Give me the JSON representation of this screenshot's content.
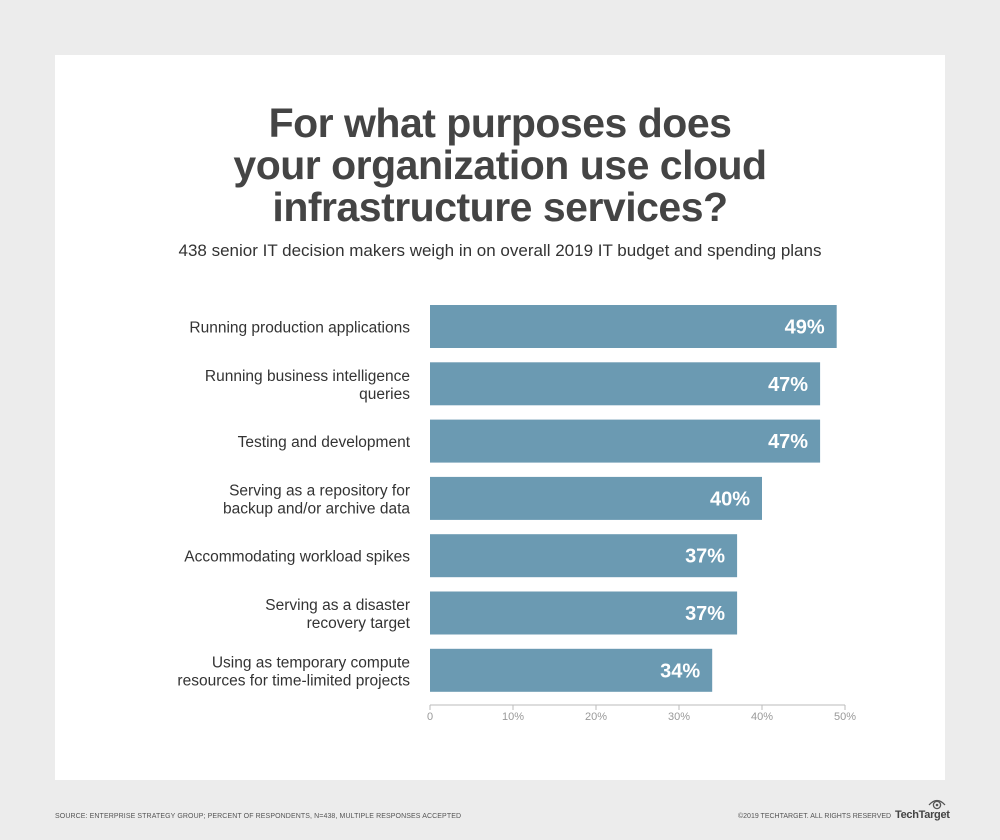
{
  "chart_data": {
    "type": "bar",
    "orientation": "horizontal",
    "title": "For what purposes does your organization use cloud infrastructure services?",
    "title_lines": [
      "For what purposes does",
      "your organization use cloud",
      "infrastructure services?"
    ],
    "subtitle": "438 senior IT decision makers weigh in on overall 2019 IT budget and spending plans",
    "categories": [
      [
        "Running production applications"
      ],
      [
        "Running business intelligence",
        "queries"
      ],
      [
        "Testing and development"
      ],
      [
        "Serving as a repository for",
        "backup and/or archive data"
      ],
      [
        "Accommodating workload spikes"
      ],
      [
        "Serving as a disaster",
        "recovery target"
      ],
      [
        "Using as temporary compute",
        "resources for time-limited projects"
      ]
    ],
    "values": [
      49,
      47,
      47,
      40,
      37,
      37,
      34
    ],
    "data_labels": [
      "49%",
      "47%",
      "47%",
      "40%",
      "37%",
      "37%",
      "34%"
    ],
    "xlim": [
      0,
      50
    ],
    "xticks": [
      0,
      10,
      20,
      30,
      40,
      50
    ],
    "xtick_labels": [
      "0",
      "10%",
      "20%",
      "30%",
      "40%",
      "50%"
    ],
    "grid": false,
    "bar_color": "#6b9ab2",
    "xlabel": "",
    "ylabel": ""
  },
  "footer": {
    "source": "SOURCE: ENTERPRISE STRATEGY GROUP; PERCENT OF RESPONDENTS, N=438, MULTIPLE RESPONSES ACCEPTED",
    "copyright": "©2019 TECHTARGET. ALL RIGHTS RESERVED",
    "brand": "TechTarget"
  }
}
